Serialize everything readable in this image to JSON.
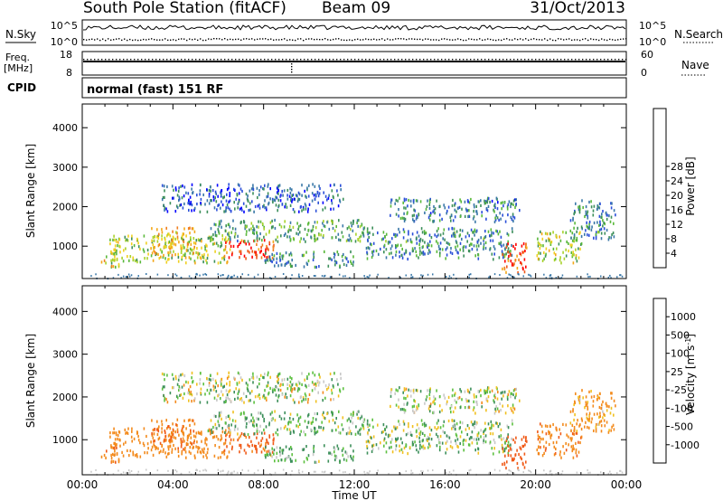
{
  "header": {
    "title": "South Pole Station (fitACF)",
    "beam": "Beam 09",
    "date": "31/Oct/2013"
  },
  "status_panels": {
    "nsky_label": "N.Sky",
    "nsearch_label": "N.Search",
    "nsky_ticks": [
      "10^5",
      "10^0"
    ],
    "nsearch_ticks": [
      "10^5",
      "10^0"
    ],
    "freq_label_1": "Freq.",
    "freq_label_2": "[MHz]",
    "freq_ticks": [
      "18",
      "8"
    ],
    "nave_label": "Nave",
    "nave_ticks": [
      "60",
      "0"
    ],
    "cpid_label": "CPID",
    "cpid_text": "normal (fast) 151 RF"
  },
  "chart_data": [
    {
      "type": "heatmap",
      "ylabel": "Slant Range [km]",
      "xlabel": "",
      "y_ticks": [
        1000,
        2000,
        3000,
        4000
      ],
      "ylim": [
        180,
        4600
      ],
      "x_ticks": [
        "00:00",
        "04:00",
        "08:00",
        "12:00",
        "16:00",
        "20:00",
        "00:00"
      ],
      "xlim_hours": [
        0,
        24
      ],
      "colorbar": {
        "label": "Power [dB]",
        "ticks": [
          "4",
          "8",
          "12",
          "16",
          "20",
          "24",
          "28"
        ],
        "colors": [
          "#0000ff",
          "#2a4fd8",
          "#3a78a8",
          "#3c8f5a",
          "#59b83a",
          "#a8d22a",
          "#f0d020",
          "#f3a718",
          "#f08020",
          "#ee5a1a",
          "#ff0000"
        ]
      }
    },
    {
      "type": "heatmap",
      "ylabel": "Slant Range [km]",
      "xlabel": "Time UT",
      "y_ticks": [
        1000,
        2000,
        3000,
        4000
      ],
      "ylim": [
        180,
        4600
      ],
      "x_ticks": [
        "00:00",
        "04:00",
        "08:00",
        "12:00",
        "16:00",
        "20:00",
        "00:00"
      ],
      "xlim_hours": [
        0,
        24
      ],
      "colorbar": {
        "label": "Velocity [m s^-1]",
        "ticks": [
          "1000",
          "500",
          "100",
          "25",
          "-25",
          "-100",
          "-500",
          "-1000"
        ],
        "colors": [
          "#1040d0",
          "#2d6fb0",
          "#3c8f5a",
          "#5cc040",
          "#c8c8c8",
          "#f0c020",
          "#f38a1c",
          "#f05a18",
          "#ff0000"
        ]
      }
    }
  ],
  "scatter_bands": [
    {
      "t0": 1.2,
      "t1": 6.5,
      "r0": 600,
      "r1": 1300,
      "pw": 16,
      "v": -300
    },
    {
      "t0": 3.0,
      "t1": 5.0,
      "r0": 800,
      "r1": 1500,
      "pw": 20,
      "v": -500
    },
    {
      "t0": 6.2,
      "t1": 8.5,
      "r0": 700,
      "r1": 1200,
      "pw": 26,
      "v": -600
    },
    {
      "t0": 5.5,
      "t1": 12.5,
      "r0": 1150,
      "r1": 1700,
      "pw": 12,
      "v": 80
    },
    {
      "t0": 3.5,
      "t1": 11.5,
      "r0": 1900,
      "r1": 2600,
      "pw": 7,
      "v": 10
    },
    {
      "t0": 12.5,
      "t1": 19.0,
      "r0": 700,
      "r1": 1500,
      "pw": 10,
      "v": 60
    },
    {
      "t0": 13.5,
      "t1": 19.3,
      "r0": 1650,
      "r1": 2250,
      "pw": 9,
      "v": 5
    },
    {
      "t0": 18.5,
      "t1": 19.6,
      "r0": 350,
      "r1": 1100,
      "pw": 26,
      "v": -700
    },
    {
      "t0": 20.0,
      "t1": 22.0,
      "r0": 600,
      "r1": 1400,
      "pw": 16,
      "v": -400
    },
    {
      "t0": 21.5,
      "t1": 23.5,
      "r0": 1200,
      "r1": 2200,
      "pw": 10,
      "v": -150
    },
    {
      "t0": 0.8,
      "t1": 1.6,
      "r0": 500,
      "r1": 900,
      "pw": 18,
      "v": -400
    },
    {
      "t0": 8.0,
      "t1": 12.0,
      "r0": 500,
      "r1": 900,
      "pw": 10,
      "v": 120
    }
  ]
}
